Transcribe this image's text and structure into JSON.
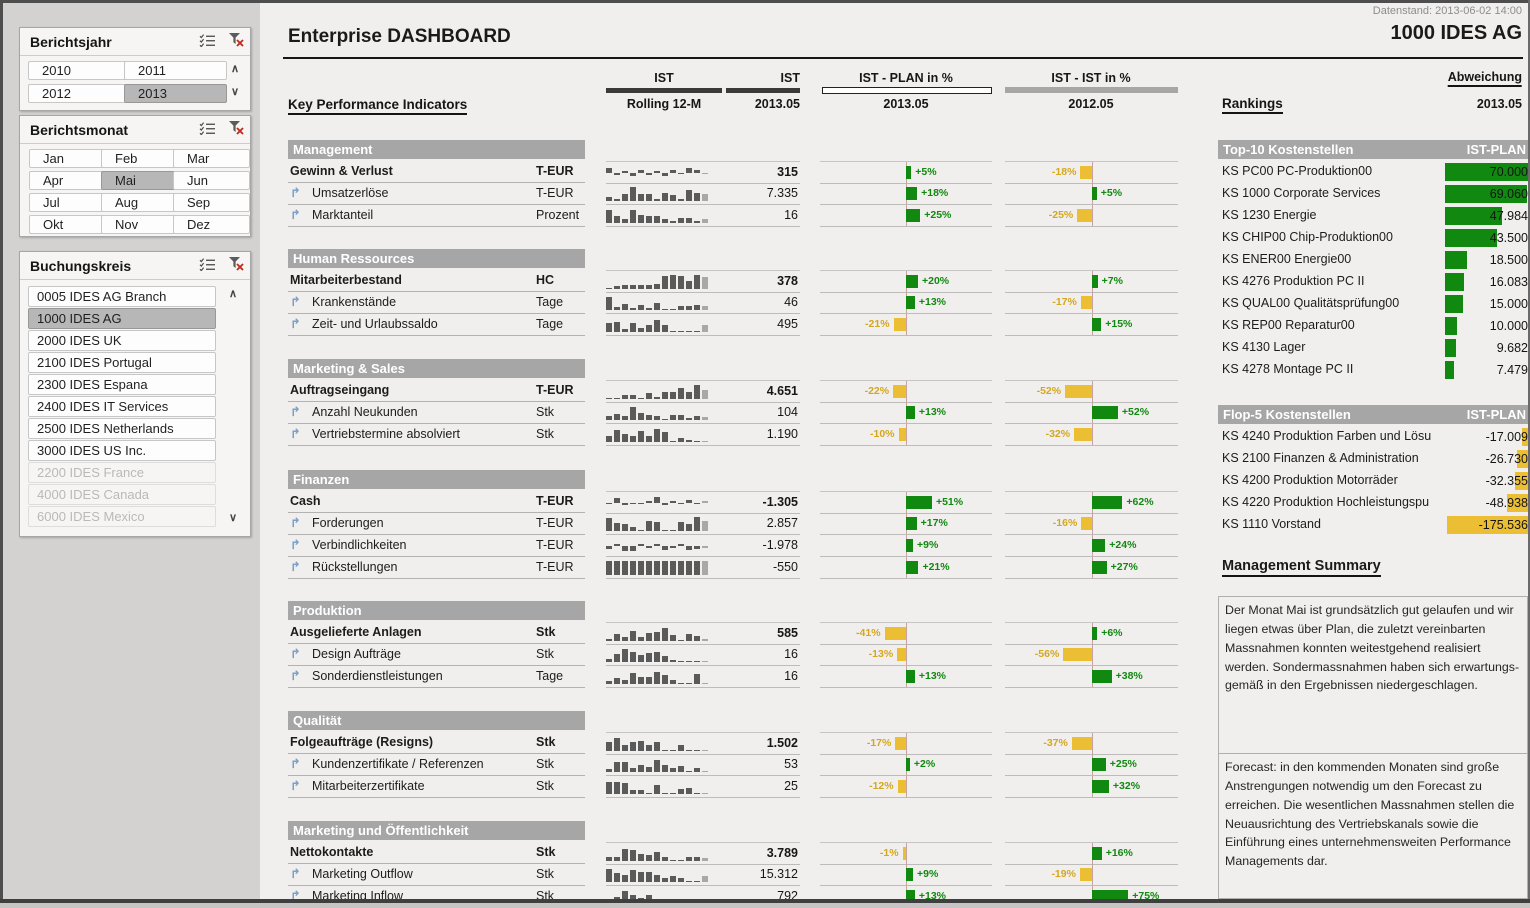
{
  "window": {
    "datenstand": "Datenstand: 2013-06-02 14:00",
    "company": "1000 IDES AG",
    "title": "Enterprise DASHBOARD"
  },
  "slicers": [
    {
      "id": "berichtsjahr",
      "title": "Berichtsjahr",
      "items": [
        {
          "label": "2010"
        },
        {
          "label": "2011"
        },
        {
          "label": "2012"
        },
        {
          "label": "2013",
          "selected": true
        }
      ]
    },
    {
      "id": "berichtsmonat",
      "title": "Berichtsmonat",
      "items": [
        {
          "label": "Jan"
        },
        {
          "label": "Feb"
        },
        {
          "label": "Mar"
        },
        {
          "label": "Apr"
        },
        {
          "label": "Mai",
          "selected": true
        },
        {
          "label": "Jun"
        },
        {
          "label": "Jul"
        },
        {
          "label": "Aug"
        },
        {
          "label": "Sep"
        },
        {
          "label": "Okt"
        },
        {
          "label": "Nov"
        },
        {
          "label": "Dez"
        }
      ]
    },
    {
      "id": "buchungskreis",
      "title": "Buchungskreis",
      "items": [
        {
          "label": "0005 IDES AG Branch"
        },
        {
          "label": "1000 IDES AG",
          "selected": true
        },
        {
          "label": "2000 IDES UK"
        },
        {
          "label": "2100 IDES Portugal"
        },
        {
          "label": "2300 IDES Espana"
        },
        {
          "label": "2400 IDES IT Services"
        },
        {
          "label": "2500 IDES Netherlands"
        },
        {
          "label": "3000 IDES US Inc."
        },
        {
          "label": "2200 IDES France",
          "disabled": true
        },
        {
          "label": "4000 IDES Canada",
          "disabled": true
        },
        {
          "label": "6000 IDES Mexico",
          "disabled": true
        }
      ]
    }
  ],
  "kpi": {
    "heading": "Key Performance Indicators",
    "columns": [
      {
        "top": "IST",
        "sub": "Rolling 12-M"
      },
      {
        "top": "IST",
        "sub": "2013.05"
      },
      {
        "top": "IST - PLAN in %",
        "sub": "2013.05"
      },
      {
        "top": "IST - IST in %",
        "sub": "2012.05"
      }
    ],
    "sections": [
      {
        "name": "Management",
        "rows": [
          {
            "name": "Gewinn & Verlust",
            "unit": "T-EUR",
            "parent": true,
            "value": "315",
            "plan": 5,
            "ist": -18,
            "spark_type": "posneg",
            "spark": [
              0.65,
              -0.3,
              0.15,
              -0.45,
              0.3,
              -0.35,
              0.15,
              -0.5,
              0.35,
              -0.25,
              0.55,
              0.4,
              -0.2
            ]
          },
          {
            "name": "Umsatzerlöse",
            "unit": "T-EUR",
            "value": "7.335",
            "plan": 18,
            "ist": 5,
            "spark_type": "pos",
            "spark": [
              0.3,
              0.12,
              0.5,
              0.95,
              0.45,
              0.5,
              0.12,
              0.55,
              0.4,
              0.15,
              0.75,
              0.55,
              0.45
            ]
          },
          {
            "name": "Marktanteil",
            "unit": "Prozent",
            "value": "16",
            "plan": 25,
            "ist": -25,
            "spark_type": "pos",
            "spark": [
              0.85,
              0.5,
              0.25,
              0.9,
              0.55,
              0.5,
              0.5,
              0.3,
              0.15,
              0.35,
              0.35,
              0.12,
              0.25
            ]
          }
        ]
      },
      {
        "name": "Human Ressources",
        "rows": [
          {
            "name": "Mitarbeiterbestand",
            "unit": "HC",
            "parent": true,
            "value": "378",
            "plan": 20,
            "ist": 7,
            "spark_type": "pos",
            "spark": [
              0.08,
              0.22,
              0.25,
              0.28,
              0.28,
              0.3,
              0.35,
              0.85,
              0.95,
              0.85,
              0.55,
              0.95,
              0.8
            ]
          },
          {
            "name": "Krankenstände",
            "unit": "Tage",
            "value": "46",
            "plan": 13,
            "ist": -17,
            "spark_type": "pos",
            "spark": [
              0.9,
              0.2,
              0.4,
              0.15,
              0.35,
              0.12,
              0.5,
              0.1,
              0.08,
              0.3,
              0.3,
              0.35,
              0.3
            ]
          },
          {
            "name": "Zeit- und Urlaubssaldo",
            "unit": "Tage",
            "value": "495",
            "plan": -21,
            "ist": 15,
            "spark_type": "pos",
            "spark": [
              0.6,
              0.7,
              0.2,
              0.6,
              0.25,
              0.45,
              0.8,
              0.5,
              0.06,
              0.06,
              0.06,
              0.06,
              0.5
            ]
          }
        ]
      },
      {
        "name": "Marketing & Sales",
        "rows": [
          {
            "name": "Auftragseingang",
            "unit": "T-EUR",
            "parent": true,
            "value": "4.651",
            "plan": -22,
            "ist": -52,
            "spark_type": "pos",
            "spark": [
              0.05,
              0.05,
              0.3,
              0.3,
              0.08,
              0.4,
              0.12,
              0.5,
              0.45,
              0.75,
              0.5,
              0.95,
              0.6
            ]
          },
          {
            "name": "Anzahl Neukunden",
            "unit": "Stk",
            "value": "104",
            "plan": 13,
            "ist": 52,
            "spark_type": "pos",
            "spark": [
              0.3,
              0.42,
              0.3,
              0.85,
              0.45,
              0.35,
              0.3,
              0.08,
              0.35,
              0.35,
              0.12,
              0.3,
              0.2
            ]
          },
          {
            "name": "Vertriebstermine absolviert",
            "unit": "Stk",
            "value": "1.190",
            "plan": -10,
            "ist": -32,
            "spark_type": "pos",
            "spark": [
              0.4,
              0.8,
              0.55,
              0.4,
              0.75,
              0.4,
              0.85,
              0.7,
              0.08,
              0.3,
              0.15,
              0.08,
              0.08
            ]
          }
        ]
      },
      {
        "name": "Finanzen",
        "rows": [
          {
            "name": "Cash",
            "unit": "T-EUR",
            "parent": true,
            "value": "-1.305",
            "plan": 51,
            "ist": 62,
            "spark_type": "posneg",
            "spark": [
              -0.2,
              0.65,
              -0.3,
              -0.15,
              -0.1,
              0.12,
              0.75,
              -0.3,
              0.1,
              -0.15,
              0.35,
              -0.25,
              0.12
            ]
          },
          {
            "name": "Forderungen",
            "unit": "T-EUR",
            "value": "2.857",
            "plan": 17,
            "ist": -16,
            "spark_type": "pos",
            "spark": [
              0.9,
              0.55,
              0.5,
              0.25,
              0.06,
              0.7,
              0.6,
              0.1,
              0.06,
              0.6,
              0.5,
              0.95,
              0.7
            ]
          },
          {
            "name": "Verbindlichkeiten",
            "unit": "T-EUR",
            "value": "-1.978",
            "plan": 9,
            "ist": 24,
            "spark_type": "posneg",
            "spark": [
              -0.5,
              0.2,
              -0.75,
              -0.7,
              0.15,
              -0.3,
              0.2,
              -0.55,
              -0.35,
              0.2,
              -0.65,
              -0.5,
              -0.3
            ]
          },
          {
            "name": "Rückstellungen",
            "unit": "T-EUR",
            "value": "-550",
            "plan": 21,
            "ist": 27,
            "spark_type": "pos",
            "spark": [
              0.95,
              0.95,
              0.95,
              0.95,
              0.95,
              0.95,
              0.95,
              0.95,
              0.95,
              0.95,
              0.95,
              0.95,
              0.95
            ]
          }
        ]
      },
      {
        "name": "Produktion",
        "rows": [
          {
            "name": "Ausgelieferte Anlagen",
            "unit": "Stk",
            "parent": true,
            "value": "585",
            "plan": -41,
            "ist": 6,
            "spark_type": "pos",
            "spark": [
              0.15,
              0.5,
              0.25,
              0.7,
              0.3,
              0.55,
              0.6,
              0.9,
              0.4,
              0.1,
              0.5,
              0.35,
              0.15
            ]
          },
          {
            "name": "Design Aufträge",
            "unit": "Stk",
            "value": "16",
            "plan": -13,
            "ist": -56,
            "spark_type": "pos",
            "spark": [
              0.2,
              0.55,
              0.9,
              0.7,
              0.5,
              0.6,
              0.7,
              0.4,
              0.15,
              0.1,
              0.1,
              0.1,
              0.08
            ]
          },
          {
            "name": "Sonderdienstleistungen",
            "unit": "Tage",
            "value": "16",
            "plan": 13,
            "ist": 38,
            "spark_type": "pos",
            "spark": [
              0.2,
              0.4,
              0.3,
              0.75,
              0.5,
              0.5,
              0.8,
              0.6,
              0.3,
              0.06,
              0.06,
              0.7,
              0.08
            ]
          }
        ]
      },
      {
        "name": "Qualität",
        "rows": [
          {
            "name": "Folgeaufträge (Resigns)",
            "unit": "Stk",
            "parent": true,
            "value": "1.502",
            "plan": -17,
            "ist": -37,
            "spark_type": "pos",
            "spark": [
              0.6,
              0.9,
              0.4,
              0.6,
              0.7,
              0.4,
              0.6,
              0.1,
              0.06,
              0.4,
              0.06,
              0.06,
              0.06
            ]
          },
          {
            "name": "Kundenzertifikate / Referenzen",
            "unit": "Stk",
            "value": "53",
            "plan": 2,
            "ist": 25,
            "spark_type": "pos",
            "spark": [
              0.2,
              0.65,
              0.7,
              0.3,
              0.5,
              0.35,
              0.8,
              0.45,
              0.25,
              0.4,
              0.06,
              0.3,
              0.06
            ]
          },
          {
            "name": "Mitarbeiterzertifikate",
            "unit": "Stk",
            "value": "25",
            "plan": -12,
            "ist": 32,
            "spark_type": "pos",
            "spark": [
              0.8,
              0.8,
              0.75,
              0.3,
              0.3,
              0.1,
              0.6,
              0.1,
              0.06,
              0.35,
              0.4,
              0.1,
              0.06
            ]
          }
        ]
      },
      {
        "name": "Marketing und Öffentlichkeit",
        "rows": [
          {
            "name": "Nettokontakte",
            "unit": "Stk",
            "parent": true,
            "value": "3.789",
            "plan": -1,
            "ist": 16,
            "spark_type": "pos",
            "spark": [
              0.3,
              0.3,
              0.8,
              0.75,
              0.5,
              0.4,
              0.6,
              0.3,
              0.06,
              0.06,
              0.3,
              0.25,
              0.2
            ]
          },
          {
            "name": "Marketing Outflow",
            "unit": "Stk",
            "value": "15.312",
            "plan": 9,
            "ist": -19,
            "spark_type": "pos",
            "spark": [
              0.9,
              0.6,
              0.5,
              0.8,
              0.7,
              0.7,
              0.5,
              0.3,
              0.4,
              0.3,
              0.06,
              0.06,
              0.4
            ]
          },
          {
            "name": "Marketing Inflow",
            "unit": "Stk",
            "value": "792",
            "plan": 13,
            "ist": 75,
            "spark_type": "pos",
            "spark": [
              0.25,
              0.5,
              0.85,
              0.6,
              0.4,
              0.6,
              0.1,
              0.06,
              0.1,
              0.06,
              0.3,
              0.06,
              0.06
            ]
          }
        ]
      }
    ]
  },
  "rankings": {
    "heading": "Rankings",
    "abweichung": {
      "top": "Abweichung",
      "sub": "2013.05"
    },
    "top10": {
      "title": "Top-10 Kostenstellen",
      "subtitle": "IST-PLAN",
      "max": 70000,
      "rows": [
        {
          "label": "KS PC00 PC-Produktion00",
          "value": "70.000",
          "num": 70000
        },
        {
          "label": "KS 1000 Corporate Services",
          "value": "69.060",
          "num": 69060
        },
        {
          "label": "KS 1230 Energie",
          "value": "47.984",
          "num": 47984
        },
        {
          "label": "KS CHIP00 Chip-Produktion00",
          "value": "43.500",
          "num": 43500
        },
        {
          "label": "KS ENER00 Energie00",
          "value": "18.500",
          "num": 18500
        },
        {
          "label": "KS 4276 Produktion PC II",
          "value": "16.083",
          "num": 16083
        },
        {
          "label": "KS QUAL00 Qualitätsprüfung00",
          "value": "15.000",
          "num": 15000
        },
        {
          "label": "KS REP00 Reparatur00",
          "value": "10.000",
          "num": 10000
        },
        {
          "label": "KS 4130 Lager",
          "value": "9.682",
          "num": 9682
        },
        {
          "label": "KS 4278 Montage PC II",
          "value": "7.479",
          "num": 7479
        }
      ]
    },
    "flop5": {
      "title": "Flop-5 Kostenstellen",
      "subtitle": "IST-PLAN",
      "max": 175536,
      "rows": [
        {
          "label": "KS 4240 Produktion Farben und Lösu",
          "value": "-17.009",
          "num": -17009
        },
        {
          "label": "KS 2100 Finanzen & Administration",
          "value": "-26.730",
          "num": -26730
        },
        {
          "label": "KS 4200 Produktion Motorräder",
          "value": "-32.355",
          "num": -32355
        },
        {
          "label": "KS 4220 Produktion Hochleistungspu",
          "value": "-48.938",
          "num": -48938
        },
        {
          "label": "KS 1110 Vorstand",
          "value": "-175.536",
          "num": -175536
        }
      ]
    },
    "summary": {
      "heading": "Management Summary",
      "paragraphs": [
        "Der Monat Mai ist grundsätzlich gut gelaufen und wir liegen etwas über Plan, die zuletzt vereinbarten Massnahmen konnten weitestgehend realisiert werden. Sondermassnahmen haben sich erwartungs-gemäß in den Ergebnissen niedergeschlagen.",
        "Forecast: in den kommenden Monaten sind große Anstrengungen notwendig um den Forecast zu erreichen. Die wesentlichen Massnahmen stellen die Neuausrichtung des Vertriebskanals sowie die Einführung eines unternehmensweiten Performance Managements dar."
      ]
    }
  },
  "colors": {
    "green": "#118911",
    "gold": "#ecbe33",
    "spark": "#5a5a5a",
    "spark_last": "#a9a8a6",
    "section_bar": "#a6a6a6"
  }
}
